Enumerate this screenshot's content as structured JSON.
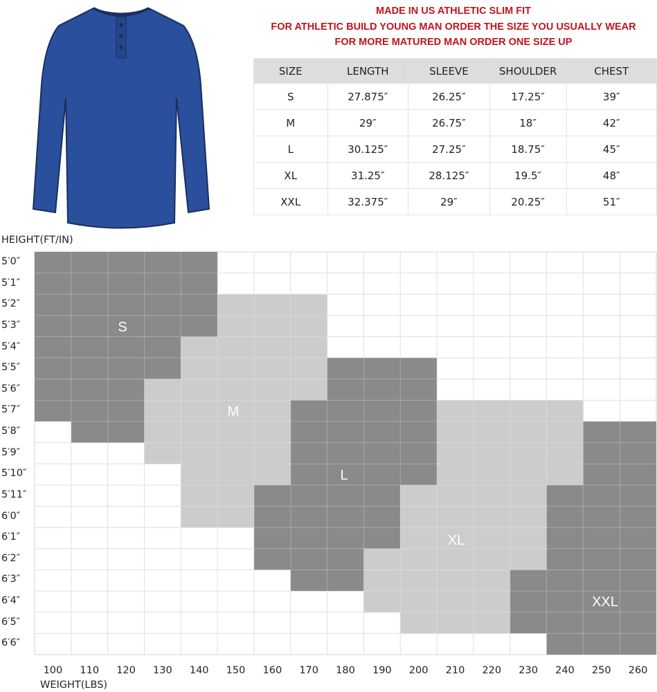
{
  "notice": [
    "MADE IN US ATHLETIC SLIM FIT",
    "FOR ATHLETIC BUILD YOUNG MAN ORDER THE SIZE YOU USUALLY WEAR",
    "FOR MORE MATURED MAN ORDER ONE SIZE UP"
  ],
  "size_table": {
    "headers": [
      "SIZE",
      "LENGTH",
      "SLEEVE",
      "SHOULDER",
      "CHEST"
    ],
    "rows": [
      [
        "S",
        "27.875″",
        "26.25″",
        "17.25″",
        "39″"
      ],
      [
        "M",
        "29″",
        "26.75″",
        "18″",
        "42″"
      ],
      [
        "L",
        "30.125″",
        "27.25″",
        "18.75″",
        "45″"
      ],
      [
        "XL",
        "31.25″",
        "28.125″",
        "19.5″",
        "48″"
      ],
      [
        "XXL",
        "32.375″",
        "29″",
        "20.25″",
        "51″"
      ]
    ]
  },
  "product_image": {
    "color": "#2a4f9c"
  },
  "chart_data": {
    "type": "heatmap",
    "ylabel": "HEIGHT(FT/IN)",
    "xlabel": "WEIGHT(LBS)",
    "heights": [
      "5′0″",
      "5′1″",
      "5′2″",
      "5′3″",
      "5′4″",
      "5′5″",
      "5′6″",
      "5′7″",
      "5′8″",
      "5′9″",
      "5′10″",
      "5′11″",
      "6′0″",
      "6′1″",
      "6′2″",
      "6′3″",
      "6′4″",
      "6′5″",
      "6′6″"
    ],
    "weights": [
      100,
      110,
      120,
      130,
      140,
      150,
      160,
      170,
      180,
      190,
      200,
      210,
      220,
      230,
      240,
      250,
      260
    ],
    "grid": true,
    "colors": {
      "dark": "#8a8a8a",
      "light": "#cbcccb",
      "grid": "#d6d6d6"
    },
    "regions": [
      {
        "size": "S",
        "shade": "dark",
        "spans": [
          [
            "5'0",
            "5'3",
            100,
            140
          ],
          [
            "5'4",
            "5'5",
            100,
            130
          ],
          [
            "5'6",
            "5'7",
            100,
            120
          ],
          [
            "5'8",
            "5'8",
            110,
            120
          ]
        ]
      },
      {
        "size": "M",
        "shade": "light",
        "spans": [
          [
            "5'2",
            "5'3",
            150,
            170
          ],
          [
            "5'4",
            "5'5",
            140,
            170
          ],
          [
            "5'6",
            "5'6",
            130,
            170
          ],
          [
            "5'7",
            "5'9",
            130,
            160
          ],
          [
            "5'10",
            "5'10",
            140,
            160
          ],
          [
            "5'11",
            "6'0",
            140,
            150
          ]
        ]
      },
      {
        "size": "L",
        "shade": "dark",
        "spans": [
          [
            "5'5",
            "5'6",
            180,
            200
          ],
          [
            "5'7",
            "5'10",
            170,
            200
          ],
          [
            "5'11",
            "6'1",
            160,
            190
          ],
          [
            "6'2",
            "6'2",
            160,
            180
          ],
          [
            "6'3",
            "6'3",
            170,
            180
          ]
        ]
      },
      {
        "size": "XL",
        "shade": "light",
        "spans": [
          [
            "5'7",
            "5'10",
            210,
            240
          ],
          [
            "5'11",
            "6'1",
            200,
            230
          ],
          [
            "6'2",
            "6'2",
            190,
            230
          ],
          [
            "6'3",
            "6'4",
            190,
            220
          ],
          [
            "6'5",
            "6'5",
            200,
            220
          ]
        ]
      },
      {
        "size": "XXL",
        "shade": "dark",
        "spans": [
          [
            "5'8",
            "5'10",
            250,
            260
          ],
          [
            "5'11",
            "6'2",
            240,
            260
          ],
          [
            "6'3",
            "6'5",
            230,
            260
          ],
          [
            "6'6",
            "6'6",
            240,
            260
          ]
        ]
      }
    ]
  }
}
